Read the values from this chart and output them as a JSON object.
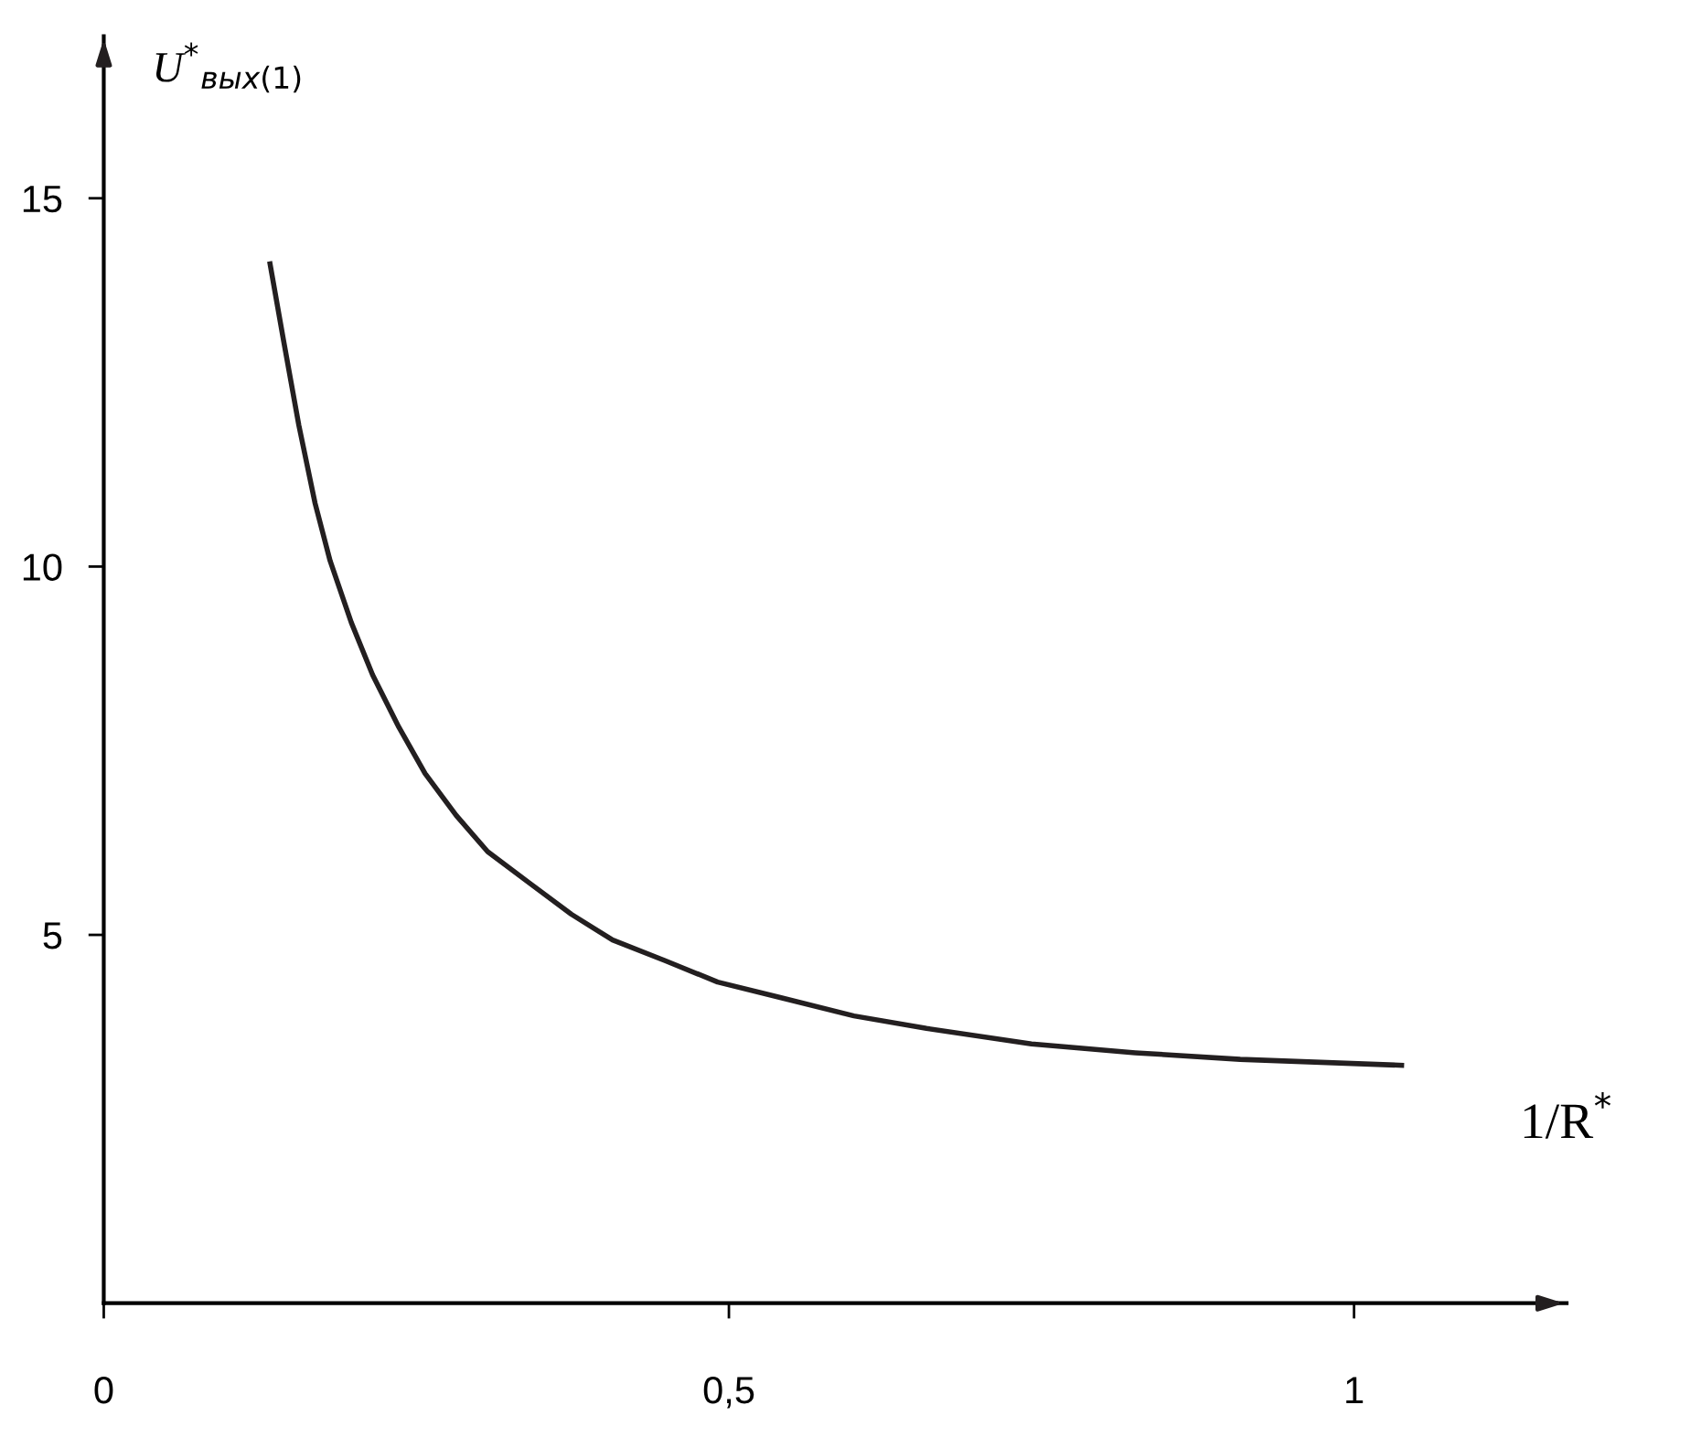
{
  "chart_data": {
    "type": "line",
    "xlabel": "1/R$^{*}$",
    "ylabel": "U$^{*}$$_{вых(1)}$",
    "x": [
      0.133,
      0.144,
      0.156,
      0.169,
      0.181,
      0.198,
      0.215,
      0.236,
      0.257,
      0.282,
      0.307,
      0.34,
      0.374,
      0.407,
      0.449,
      0.491,
      0.541,
      0.6,
      0.658,
      0.742,
      0.825,
      0.909,
      1.038
    ],
    "series": [
      {
        "color": "#231f20",
        "values": [
          14.11,
          13.05,
          11.92,
          10.86,
          10.08,
          9.24,
          8.53,
          7.82,
          7.19,
          6.62,
          6.13,
          5.71,
          5.28,
          4.93,
          4.65,
          4.36,
          4.15,
          3.9,
          3.73,
          3.52,
          3.4,
          3.31,
          3.23
        ]
      }
    ],
    "xlim": [
      0,
      1.17
    ],
    "ylim": [
      0,
      17.2
    ],
    "xticks": [
      {
        "value": 0,
        "label": "0"
      },
      {
        "value": 0.5,
        "label": "0,5"
      },
      {
        "value": 1,
        "label": "1"
      }
    ],
    "yticks": [
      5,
      10,
      15
    ],
    "grid": false,
    "legend": false,
    "marker": "none",
    "line_style": "solid"
  }
}
